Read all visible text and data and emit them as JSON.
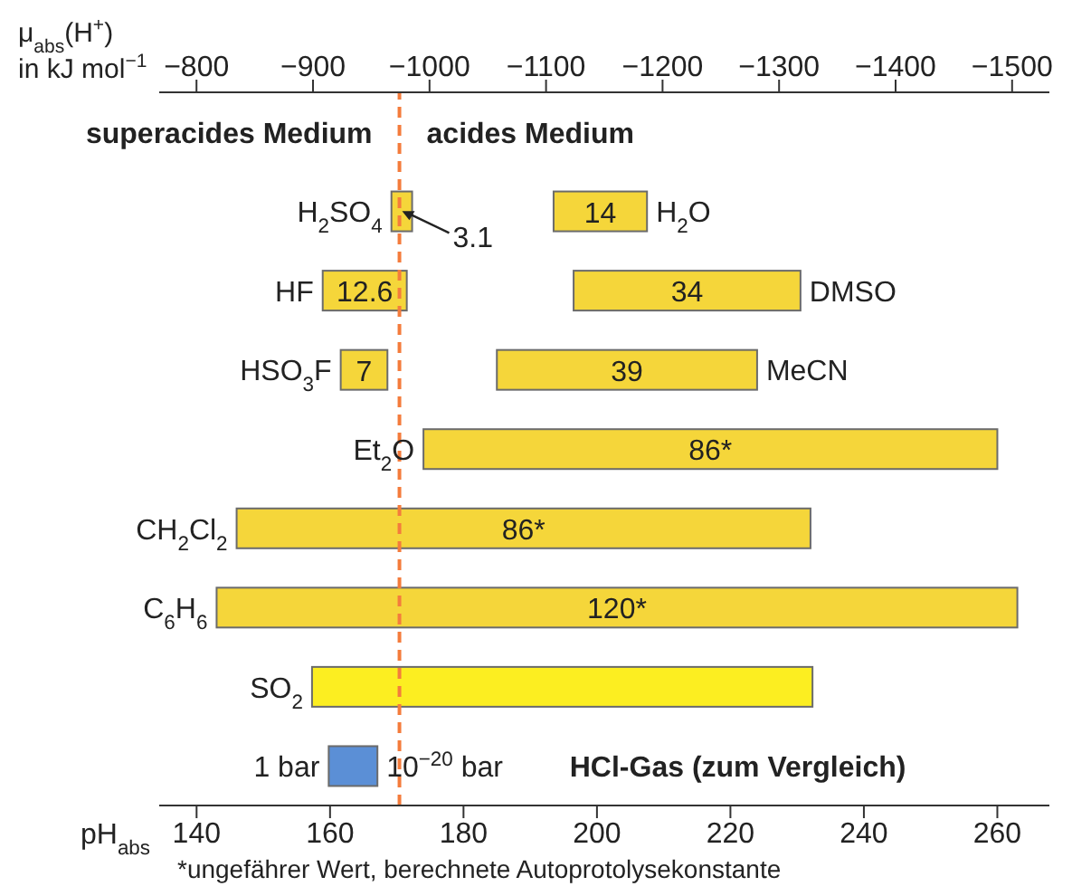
{
  "chart_data": {
    "type": "bar",
    "orientation": "horizontal",
    "xlabel": "pH$_{abs}$",
    "x2label": "μ$_{abs}$(H$^{+}$) in kJ mol$^{−1}$",
    "categories": [
      null,
      "H$_{2}$SO$_{4}$",
      "HF",
      "HSO$_{3}$F",
      "Et$_{2}$O",
      "CH$_{2}$Cl$_{2}$",
      "C$_{6}$H$_{6}$",
      "SO$_{2}$",
      null
    ],
    "series": [
      {
        "colors": [
          null,
          "#f5d63a",
          "#f5d63a",
          "#f5d63a",
          "#f5d63a",
          "#f5d63a",
          "#f5d63a",
          "#fcee21",
          "#5b8fd6"
        ],
        "base": [
          null,
          169.2,
          158.9,
          161.6,
          174,
          146,
          143,
          157.3,
          159.8
        ],
        "values": [
          null,
          3.1,
          12.6,
          7,
          86,
          86,
          120,
          75,
          7.3
        ],
        "value_labels": [
          null,
          null,
          "12.6",
          "7",
          "86*",
          "86*",
          "120*",
          null,
          null
        ]
      },
      {
        "colors": [
          null,
          "#f5d63a",
          "#f5d63a",
          "#f5d63a",
          null,
          null,
          null,
          null,
          null
        ],
        "base": [
          null,
          193.5,
          196.5,
          185,
          null,
          null,
          null,
          null,
          null
        ],
        "values": [
          null,
          14,
          34,
          39,
          null,
          null,
          null,
          null,
          null
        ],
        "value_labels": [
          null,
          "14",
          "34",
          "39",
          null,
          null,
          null,
          null,
          null
        ]
      }
    ],
    "xlim": [
      134.4,
      267.8
    ],
    "xticks": [
      140,
      160,
      180,
      200,
      220,
      240,
      260
    ],
    "x2lim": [
      -768,
      -1532
    ],
    "x2ticks": [
      {
        "value": -800,
        "label": "−800"
      },
      {
        "value": -900,
        "label": "−900"
      },
      {
        "value": -1000,
        "label": "−1000"
      },
      {
        "value": -1100,
        "label": "−1100"
      },
      {
        "value": -1200,
        "label": "−1200"
      },
      {
        "value": -1300,
        "label": "−1300"
      },
      {
        "value": -1400,
        "label": "−1400"
      },
      {
        "value": -1500,
        "label": "−1500"
      }
    ],
    "ref_lines": [
      {
        "axis": "x",
        "value": 170.4,
        "color": "#f47c3c",
        "line_style": "dashed"
      }
    ],
    "annotations": [
      "superacides Medium",
      "acides Medium",
      {
        "text": "3.1",
        "x": 170.8,
        "y": "H$_{2}$SO$_{4}$"
      },
      {
        "text": "H$_{2}$O",
        "x": 207.5,
        "y": "H$_{2}$SO$_{4}$"
      },
      {
        "text": "DMSO",
        "x": 230.5,
        "y": "HF"
      },
      {
        "text": "MeCN",
        "x": 224,
        "y": "HSO$_{3}$F"
      },
      {
        "text": "1 bar",
        "x": 159.8
      },
      {
        "text": "10$^{−20}$ bar",
        "x": 167.1
      },
      "HCl-Gas (zum Vergleich)",
      "*ungefährer Wert, berechnete Autoprotolysekonstante"
    ]
  }
}
